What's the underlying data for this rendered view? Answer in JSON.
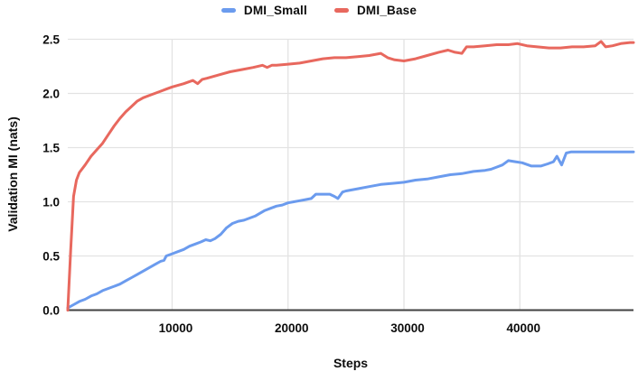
{
  "chart_data": {
    "type": "line",
    "title": "",
    "xlabel": "Steps",
    "ylabel": "Validation MI (nats)",
    "legend_position": "top",
    "grid": true,
    "x_axis": {
      "min": 1000,
      "max": 49800,
      "ticks": [
        10000,
        20000,
        30000,
        40000
      ],
      "tick_labels": [
        "10000",
        "20000",
        "30000",
        "40000"
      ]
    },
    "y_axis": {
      "min": 0,
      "max": 2.5,
      "ticks": [
        0.0,
        0.5,
        1.0,
        1.5,
        2.0,
        2.5
      ],
      "tick_labels": [
        "0.0",
        "0.5",
        "1.0",
        "1.5",
        "2.0",
        "2.5"
      ]
    },
    "colors": {
      "grid": "#e3e3e3",
      "baseline": "#424242",
      "text": "#0d0d0d"
    },
    "series": [
      {
        "name": "DMI_Small",
        "color": "#6b9bee",
        "points": [
          [
            1000,
            0.02
          ],
          [
            1500,
            0.05
          ],
          [
            2000,
            0.08
          ],
          [
            2500,
            0.1
          ],
          [
            3000,
            0.13
          ],
          [
            3500,
            0.15
          ],
          [
            4000,
            0.18
          ],
          [
            4500,
            0.2
          ],
          [
            5000,
            0.22
          ],
          [
            5500,
            0.24
          ],
          [
            6000,
            0.27
          ],
          [
            6500,
            0.3
          ],
          [
            7000,
            0.33
          ],
          [
            7500,
            0.36
          ],
          [
            8000,
            0.39
          ],
          [
            8500,
            0.42
          ],
          [
            9000,
            0.45
          ],
          [
            9300,
            0.46
          ],
          [
            9500,
            0.5
          ],
          [
            10000,
            0.52
          ],
          [
            10500,
            0.54
          ],
          [
            11000,
            0.56
          ],
          [
            11500,
            0.59
          ],
          [
            12000,
            0.61
          ],
          [
            12500,
            0.63
          ],
          [
            12900,
            0.65
          ],
          [
            13300,
            0.64
          ],
          [
            13700,
            0.66
          ],
          [
            14200,
            0.7
          ],
          [
            14700,
            0.76
          ],
          [
            15200,
            0.8
          ],
          [
            15700,
            0.82
          ],
          [
            16200,
            0.83
          ],
          [
            16700,
            0.85
          ],
          [
            17200,
            0.87
          ],
          [
            18000,
            0.92
          ],
          [
            18500,
            0.94
          ],
          [
            19000,
            0.96
          ],
          [
            19500,
            0.97
          ],
          [
            20000,
            0.99
          ],
          [
            20500,
            1.0
          ],
          [
            21000,
            1.01
          ],
          [
            21500,
            1.02
          ],
          [
            22000,
            1.03
          ],
          [
            22400,
            1.07
          ],
          [
            23000,
            1.07
          ],
          [
            23600,
            1.07
          ],
          [
            24000,
            1.05
          ],
          [
            24300,
            1.03
          ],
          [
            24700,
            1.09
          ],
          [
            25000,
            1.1
          ],
          [
            26000,
            1.12
          ],
          [
            27000,
            1.14
          ],
          [
            28000,
            1.16
          ],
          [
            29000,
            1.17
          ],
          [
            30000,
            1.18
          ],
          [
            31000,
            1.2
          ],
          [
            32000,
            1.21
          ],
          [
            33000,
            1.23
          ],
          [
            34000,
            1.25
          ],
          [
            35000,
            1.26
          ],
          [
            36000,
            1.28
          ],
          [
            37000,
            1.29
          ],
          [
            37500,
            1.3
          ],
          [
            38000,
            1.32
          ],
          [
            38500,
            1.34
          ],
          [
            39000,
            1.38
          ],
          [
            39600,
            1.37
          ],
          [
            40200,
            1.36
          ],
          [
            41000,
            1.33
          ],
          [
            41800,
            1.33
          ],
          [
            42400,
            1.35
          ],
          [
            42900,
            1.37
          ],
          [
            43200,
            1.42
          ],
          [
            43600,
            1.34
          ],
          [
            44000,
            1.45
          ],
          [
            44400,
            1.46
          ],
          [
            45500,
            1.46
          ],
          [
            46500,
            1.46
          ],
          [
            47500,
            1.46
          ],
          [
            48500,
            1.46
          ],
          [
            49800,
            1.46
          ]
        ]
      },
      {
        "name": "DMI_Base",
        "color": "#e8685e",
        "points": [
          [
            1000,
            0.0
          ],
          [
            1250,
            0.55
          ],
          [
            1500,
            1.05
          ],
          [
            1750,
            1.2
          ],
          [
            2000,
            1.27
          ],
          [
            2500,
            1.34
          ],
          [
            3000,
            1.42
          ],
          [
            3500,
            1.48
          ],
          [
            4000,
            1.54
          ],
          [
            4500,
            1.62
          ],
          [
            5000,
            1.7
          ],
          [
            5500,
            1.77
          ],
          [
            6000,
            1.83
          ],
          [
            6500,
            1.88
          ],
          [
            7000,
            1.93
          ],
          [
            7500,
            1.96
          ],
          [
            8000,
            1.98
          ],
          [
            8500,
            2.0
          ],
          [
            9000,
            2.02
          ],
          [
            9500,
            2.04
          ],
          [
            10000,
            2.06
          ],
          [
            11000,
            2.09
          ],
          [
            11800,
            2.12
          ],
          [
            12200,
            2.09
          ],
          [
            12600,
            2.13
          ],
          [
            13000,
            2.14
          ],
          [
            14000,
            2.17
          ],
          [
            15000,
            2.2
          ],
          [
            16000,
            2.22
          ],
          [
            17000,
            2.24
          ],
          [
            17800,
            2.26
          ],
          [
            18200,
            2.24
          ],
          [
            18600,
            2.26
          ],
          [
            19000,
            2.26
          ],
          [
            20000,
            2.27
          ],
          [
            21000,
            2.28
          ],
          [
            22000,
            2.3
          ],
          [
            23000,
            2.32
          ],
          [
            24000,
            2.33
          ],
          [
            25000,
            2.33
          ],
          [
            26000,
            2.34
          ],
          [
            27000,
            2.35
          ],
          [
            28000,
            2.37
          ],
          [
            28600,
            2.33
          ],
          [
            29200,
            2.31
          ],
          [
            30000,
            2.3
          ],
          [
            31000,
            2.32
          ],
          [
            32000,
            2.35
          ],
          [
            33000,
            2.38
          ],
          [
            33800,
            2.4
          ],
          [
            34400,
            2.38
          ],
          [
            35000,
            2.37
          ],
          [
            35400,
            2.43
          ],
          [
            36000,
            2.43
          ],
          [
            37000,
            2.44
          ],
          [
            38000,
            2.45
          ],
          [
            39000,
            2.45
          ],
          [
            39800,
            2.46
          ],
          [
            40600,
            2.44
          ],
          [
            41500,
            2.43
          ],
          [
            42500,
            2.42
          ],
          [
            43500,
            2.42
          ],
          [
            44500,
            2.43
          ],
          [
            45500,
            2.43
          ],
          [
            46500,
            2.44
          ],
          [
            47000,
            2.48
          ],
          [
            47400,
            2.43
          ],
          [
            48000,
            2.44
          ],
          [
            48700,
            2.46
          ],
          [
            49500,
            2.47
          ],
          [
            49800,
            2.47
          ]
        ]
      }
    ]
  }
}
